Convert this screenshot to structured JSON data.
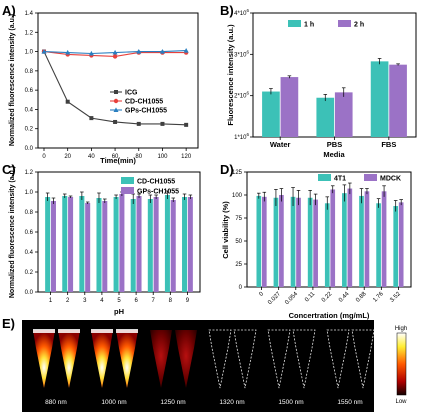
{
  "panel_labels": [
    "A)",
    "B)",
    "C)",
    "D)",
    "E)"
  ],
  "colors": {
    "icg": "#404040",
    "cd": "#e8413c",
    "gps": "#2a7fc0",
    "teal": "#3cc1b7",
    "purple": "#9b72c6"
  },
  "chart_data": [
    {
      "panel": "A",
      "type": "line",
      "xlabel": "Time(min)",
      "ylabel": "Normalized fluorescence intensity (a.u.)",
      "xlim": [
        0,
        130
      ],
      "ylim": [
        0,
        1.4
      ],
      "x_ticks": [
        "0",
        "20",
        "40",
        "60",
        "80",
        "100",
        "120"
      ],
      "y_ticks": [
        "0.0",
        "0.2",
        "0.4",
        "0.6",
        "0.8",
        "1.0",
        "1.2",
        "1.4"
      ],
      "x": [
        0,
        20,
        40,
        60,
        80,
        100,
        120
      ],
      "legend_position": "right",
      "series": [
        {
          "name": "ICG",
          "marker": "square",
          "values": [
            1.0,
            0.48,
            0.31,
            0.27,
            0.25,
            0.25,
            0.24
          ]
        },
        {
          "name": "CD-CH1055",
          "marker": "circle",
          "values": [
            1.0,
            0.97,
            0.96,
            0.95,
            0.99,
            0.99,
            0.99
          ]
        },
        {
          "name": "GPs-CH1055",
          "marker": "triangle",
          "values": [
            1.0,
            0.99,
            0.98,
            0.99,
            1.0,
            1.0,
            1.01
          ]
        }
      ]
    },
    {
      "panel": "B",
      "type": "bar",
      "xlabel": "Media",
      "ylabel": "Fluorescence intensity (a.u.)",
      "categories": [
        "Water",
        "PBS",
        "FBS"
      ],
      "y_ticks": [
        "1*10^6",
        "2*10^6",
        "3*10^6",
        "4*10^6"
      ],
      "ylim": [
        1000000,
        4000000
      ],
      "legend_position": "top",
      "series": [
        {
          "name": "1 h",
          "values": [
            2100000,
            1950000,
            2830000
          ],
          "errors": [
            70000,
            80000,
            70000
          ]
        },
        {
          "name": "2 h",
          "values": [
            2450000,
            2080000,
            2750000
          ],
          "errors": [
            30000,
            110000,
            20000
          ]
        }
      ]
    },
    {
      "panel": "C",
      "type": "bar",
      "xlabel": "pH",
      "ylabel": "Normalized fluorescence intensity (a.u.)",
      "categories": [
        "1",
        "2",
        "3",
        "4",
        "5",
        "6",
        "7",
        "8",
        "9"
      ],
      "y_ticks": [
        "0.0",
        "0.2",
        "0.4",
        "0.6",
        "0.8",
        "1.0",
        "1.2"
      ],
      "ylim": [
        0,
        1.2
      ],
      "legend_position": "top-right",
      "series": [
        {
          "name": "CD-CH1055",
          "values": [
            0.95,
            0.96,
            0.96,
            0.94,
            0.95,
            0.93,
            0.93,
            0.97,
            0.95
          ],
          "errors": [
            0.04,
            0.02,
            0.04,
            0.05,
            0.02,
            0.05,
            0.04,
            0.04,
            0.03
          ]
        },
        {
          "name": "GPs-CH1055",
          "values": [
            0.91,
            0.95,
            0.89,
            0.91,
            0.98,
            0.96,
            0.95,
            0.92,
            0.95
          ],
          "errors": [
            0.03,
            0.01,
            0.01,
            0.02,
            0.02,
            0.02,
            0.02,
            0.02,
            0.02
          ]
        }
      ]
    },
    {
      "panel": "D",
      "type": "bar",
      "xlabel": "Concertration (mg/mL)",
      "ylabel": "Cell viability (%)",
      "categories": [
        "0",
        "0.027",
        "0.054",
        "0.11",
        "0.22",
        "0.44",
        "0.88",
        "1.76",
        "3.52"
      ],
      "y_ticks": [
        "0",
        "25",
        "50",
        "75",
        "100",
        "125"
      ],
      "ylim": [
        0,
        125
      ],
      "legend_position": "top-right",
      "series": [
        {
          "name": "4T1",
          "values": [
            99,
            97,
            98,
            97,
            91,
            102,
            99,
            91,
            88
          ],
          "errors": [
            3,
            9,
            10,
            8,
            7,
            9,
            8,
            5,
            6
          ]
        },
        {
          "name": "MDCK",
          "values": [
            98,
            100,
            97,
            95,
            106,
            107,
            104,
            104,
            92
          ],
          "errors": [
            5,
            7,
            8,
            6,
            4,
            6,
            3,
            6,
            3
          ]
        }
      ]
    }
  ],
  "panel_e": {
    "wavelengths": [
      "880 nm",
      "1000 nm",
      "1250 nm",
      "1320 nm",
      "1500 nm",
      "1550 nm"
    ],
    "intensity": [
      1.0,
      0.85,
      0.3,
      0.0,
      0.0,
      0.0
    ],
    "colorbar_high": "High",
    "colorbar_low": "Low"
  }
}
